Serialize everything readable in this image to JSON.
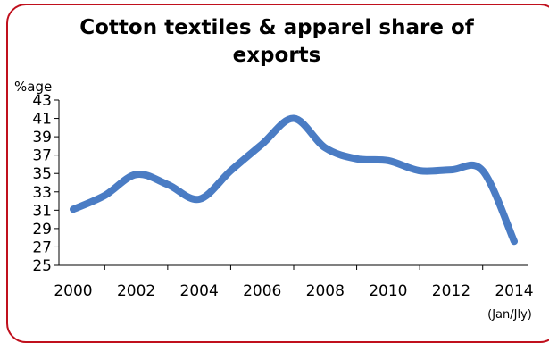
{
  "chart_data": {
    "type": "line",
    "title": "Cotton textiles & apparel share of exports",
    "ylabel": "%age",
    "xlabel": "",
    "ylim": [
      25,
      43
    ],
    "yticks": [
      43,
      41,
      39,
      37,
      35,
      33,
      31,
      29,
      27,
      25
    ],
    "xlim": [
      2000,
      2014
    ],
    "xticks": [
      2000,
      2002,
      2004,
      2006,
      2008,
      2010,
      2012,
      2014
    ],
    "x_note": "(Jan/Jly)",
    "grid": false,
    "legend": "none",
    "series": [
      {
        "color": "#4a7cc4",
        "points": [
          {
            "x": 2000,
            "y": 31.1
          },
          {
            "x": 2001,
            "y": 32.6
          },
          {
            "x": 2002,
            "y": 34.9
          },
          {
            "x": 2003,
            "y": 33.8
          },
          {
            "x": 2004,
            "y": 32.2
          },
          {
            "x": 2005,
            "y": 35.3
          },
          {
            "x": 2006,
            "y": 38.2
          },
          {
            "x": 2007,
            "y": 41.0
          },
          {
            "x": 2008,
            "y": 37.8
          },
          {
            "x": 2009,
            "y": 36.6
          },
          {
            "x": 2010,
            "y": 36.4
          },
          {
            "x": 2011,
            "y": 35.3
          },
          {
            "x": 2012,
            "y": 35.4
          },
          {
            "x": 2013,
            "y": 35.3
          },
          {
            "x": 2014,
            "y": 27.6
          }
        ]
      }
    ]
  }
}
